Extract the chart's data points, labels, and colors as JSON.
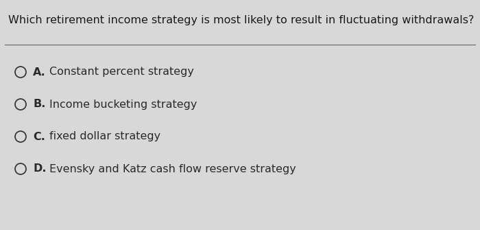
{
  "question": "Which retirement income strategy is most likely to result in fluctuating withdrawals?",
  "options": [
    {
      "label": "A.",
      "text": "Constant percent strategy"
    },
    {
      "label": "B.",
      "text": "Income bucketing strategy"
    },
    {
      "label": "C.",
      "text": "fixed dollar strategy"
    },
    {
      "label": "D.",
      "text": "Evensky and Katz cash flow reserve strategy"
    }
  ],
  "bg_color": "#d8d8d8",
  "question_color": "#1a1a1a",
  "option_label_color": "#2a2a2a",
  "option_text_color": "#2a2a2a",
  "circle_edge_color": "#3a3a3a",
  "circle_fill_color": "#d8d8d8",
  "separator_color": "#666666",
  "question_fontsize": 11.5,
  "option_fontsize": 11.5
}
